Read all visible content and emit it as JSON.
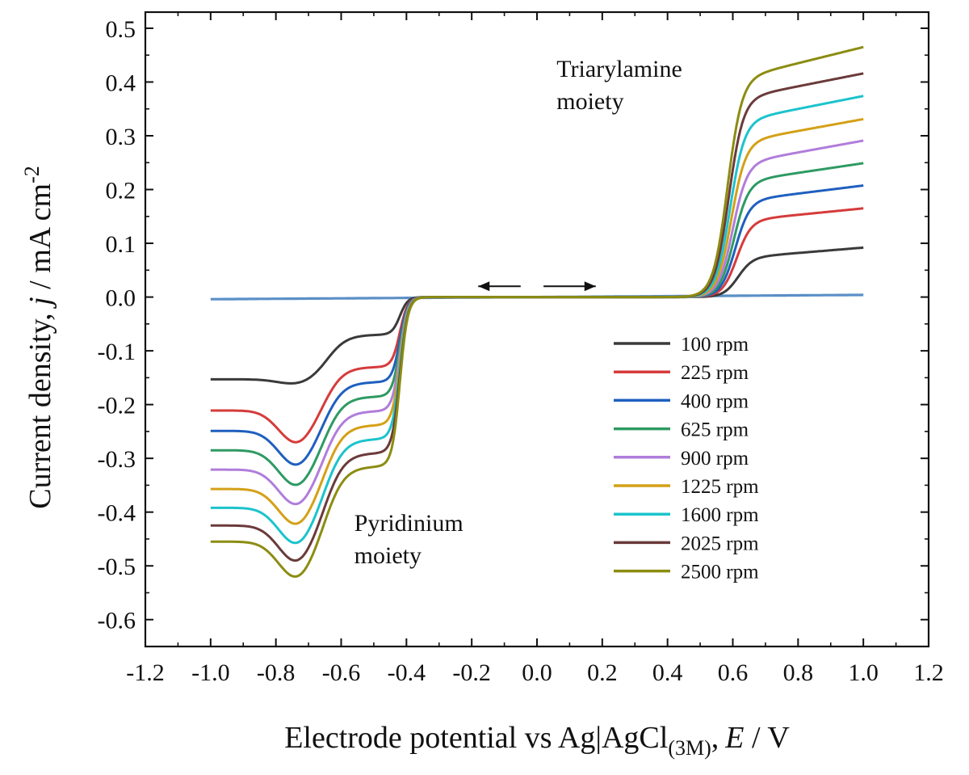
{
  "chart_data": {
    "type": "line",
    "xlabel": {
      "main": "Electrode potential vs Ag|AgCl",
      "sub": "(3M)",
      "comma": ",",
      "var": "E",
      "unit": " / V"
    },
    "ylabel": {
      "main": "Current density, ",
      "var": "j",
      "unit": " / mA cm",
      "sup": "-2"
    },
    "xlim": [
      -1.2,
      1.2
    ],
    "ylim": [
      -0.65,
      0.53
    ],
    "xticks": [
      -1.2,
      -1.0,
      -0.8,
      -0.6,
      -0.4,
      -0.2,
      0.0,
      0.2,
      0.4,
      0.6,
      0.8,
      1.0,
      1.2
    ],
    "xtick_labels": [
      "-1.2",
      "-1.0",
      "-0.8",
      "-0.6",
      "-0.4",
      "-0.2",
      "0.0",
      "0.2",
      "0.4",
      "0.6",
      "0.8",
      "1.0",
      "1.2"
    ],
    "yticks": [
      0.5,
      0.4,
      0.3,
      0.2,
      0.1,
      0.0,
      -0.1,
      -0.2,
      -0.3,
      -0.4,
      -0.5,
      -0.6
    ],
    "ytick_labels": [
      "0.5",
      "0.4",
      "0.3",
      "0.2",
      "0.1",
      "0.0",
      "-0.1",
      "-0.2",
      "-0.3",
      "-0.4",
      "-0.5",
      "-0.6"
    ],
    "grid": false,
    "legend_position": "bottom-right",
    "annotations": [
      {
        "lines": [
          "Triarylamine",
          "moiety"
        ],
        "x": 0.06,
        "y": 0.41
      },
      {
        "lines": [
          "Pyridinium",
          "moiety"
        ],
        "x": -0.56,
        "y": -0.435
      }
    ],
    "scan_arrows": [
      {
        "from": -0.05,
        "to": -0.18,
        "y": 0.02
      },
      {
        "from": 0.02,
        "to": 0.18,
        "y": 0.02
      }
    ],
    "series": [
      {
        "name": "100 rpm",
        "color": "#3a3a3a",
        "plateau_neg": -0.153,
        "dip": 0.01,
        "shoulder": -0.07,
        "plateau_pos": 0.077,
        "slope_pos": 0.05
      },
      {
        "name": "225 rpm",
        "color": "#d63b3b",
        "plateau_neg": -0.211,
        "dip": 0.062,
        "shoulder": -0.13,
        "plateau_pos": 0.147,
        "slope_pos": 0.06
      },
      {
        "name": "400 rpm",
        "color": "#1f5fbf",
        "plateau_neg": -0.249,
        "dip": 0.066,
        "shoulder": -0.158,
        "plateau_pos": 0.185,
        "slope_pos": 0.075
      },
      {
        "name": "625 rpm",
        "color": "#2e9a63",
        "plateau_neg": -0.285,
        "dip": 0.068,
        "shoulder": -0.185,
        "plateau_pos": 0.222,
        "slope_pos": 0.09
      },
      {
        "name": "900 rpm",
        "color": "#b07ddb",
        "plateau_neg": -0.321,
        "dip": 0.068,
        "shoulder": -0.212,
        "plateau_pos": 0.258,
        "slope_pos": 0.11
      },
      {
        "name": "1225 rpm",
        "color": "#d4a017",
        "plateau_neg": -0.357,
        "dip": 0.069,
        "shoulder": -0.238,
        "plateau_pos": 0.298,
        "slope_pos": 0.11
      },
      {
        "name": "1600 rpm",
        "color": "#1cc3cc",
        "plateau_neg": -0.392,
        "dip": 0.07,
        "shoulder": -0.264,
        "plateau_pos": 0.338,
        "slope_pos": 0.12
      },
      {
        "name": "2025 rpm",
        "color": "#6b3a3a",
        "plateau_neg": -0.425,
        "dip": 0.07,
        "shoulder": -0.29,
        "plateau_pos": 0.38,
        "slope_pos": 0.12
      },
      {
        "name": "2500 rpm",
        "color": "#8c8c12",
        "plateau_neg": -0.455,
        "dip": 0.07,
        "shoulder": -0.315,
        "plateau_pos": 0.42,
        "slope_pos": 0.15
      }
    ],
    "baseline": {
      "color": "#5b8fc7",
      "y_start": -0.004,
      "y_end": 0.004
    }
  }
}
